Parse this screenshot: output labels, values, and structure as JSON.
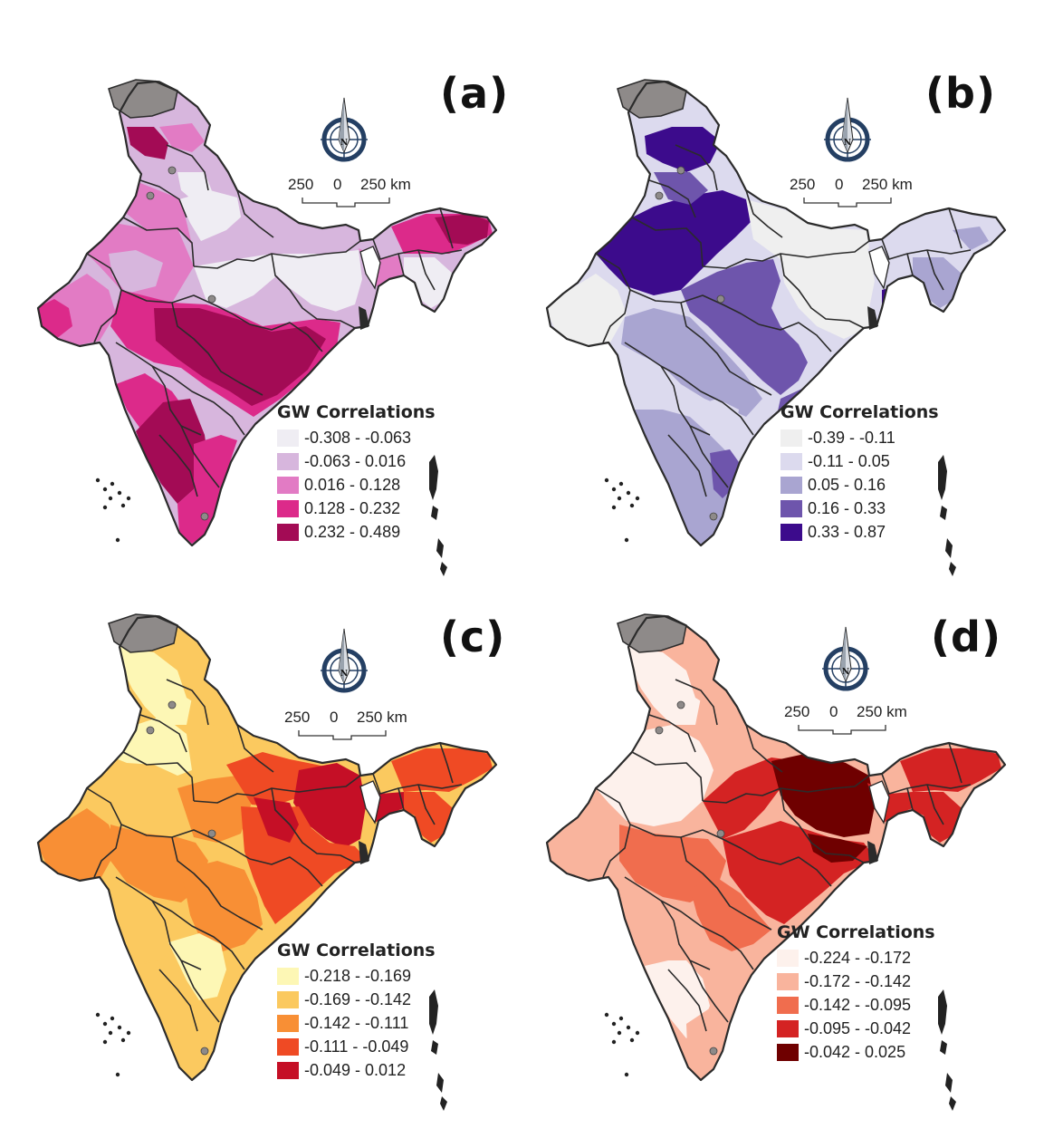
{
  "colors": {
    "border": "#2b2b2b",
    "disputed": "#8e8a89"
  },
  "scale_text": {
    "left": "250",
    "mid": "0",
    "right": "250 km"
  },
  "compass_letter": "N",
  "panels": [
    {
      "id": "a",
      "label": "(a)",
      "legend_title": "GW Correlations",
      "classes": [
        {
          "label": "-0.308 - -0.063",
          "color": "#efedf3"
        },
        {
          "label": "-0.063 - 0.016",
          "color": "#d7b6dd"
        },
        {
          "label": "0.016 - 0.128",
          "color": "#e27bc4"
        },
        {
          "label": "0.128 - 0.232",
          "color": "#dc2a8a"
        },
        {
          "label": "0.232 - 0.489",
          "color": "#a30b55"
        }
      ]
    },
    {
      "id": "b",
      "label": "(b)",
      "legend_title": "GW Correlations",
      "classes": [
        {
          "label": "-0.39 - -0.11",
          "color": "#efefef"
        },
        {
          "label": "-0.11 - 0.05",
          "color": "#dcdaee"
        },
        {
          "label": "0.05 - 0.16",
          "color": "#a9a5d1"
        },
        {
          "label": "0.16 - 0.33",
          "color": "#6e55ac"
        },
        {
          "label": "0.33 - 0.87",
          "color": "#3c0b8c"
        }
      ]
    },
    {
      "id": "c",
      "label": "(c)",
      "legend_title": "GW Correlations",
      "classes": [
        {
          "label": "-0.218 - -0.169",
          "color": "#fdf7b5"
        },
        {
          "label": "-0.169 - -0.142",
          "color": "#fbc95f"
        },
        {
          "label": "-0.142 - -0.111",
          "color": "#f88f35"
        },
        {
          "label": "-0.111 - -0.049",
          "color": "#ef4a24"
        },
        {
          "label": "-0.049 - 0.012",
          "color": "#c50f26"
        }
      ]
    },
    {
      "id": "d",
      "label": "(d)",
      "legend_title": "GW Correlations",
      "classes": [
        {
          "label": "-0.224 - -0.172",
          "color": "#fdf1ec"
        },
        {
          "label": "-0.172 - -0.142",
          "color": "#f9b49d"
        },
        {
          "label": "-0.142 - -0.095",
          "color": "#f06d4e"
        },
        {
          "label": "-0.095 - -0.042",
          "color": "#d42323"
        },
        {
          "label": "-0.042 - 0.025",
          "color": "#6f0000"
        }
      ]
    }
  ]
}
